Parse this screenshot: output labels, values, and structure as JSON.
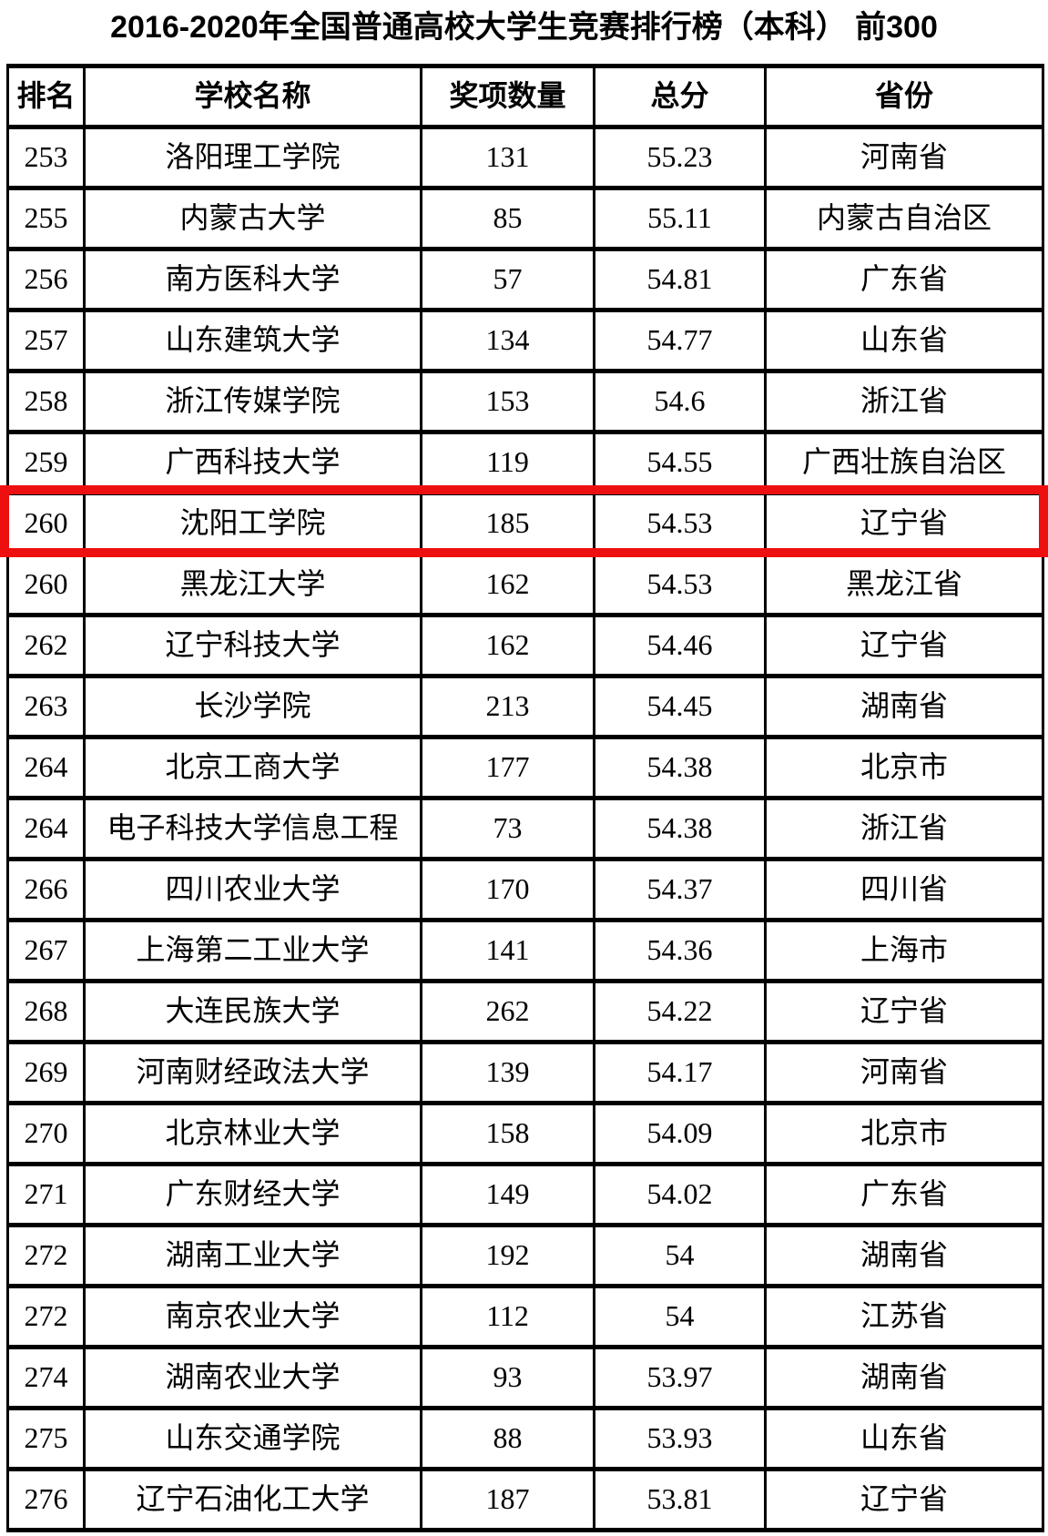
{
  "title": "2016-2020年全国普通高校大学生竞赛排行榜（本科） 前300",
  "colors": {
    "highlight_red": "#ee0f10",
    "border": "#000000",
    "text": "#000000",
    "background": "#ffffff"
  },
  "table": {
    "headers": [
      "排名",
      "学校名称",
      "奖项数量",
      "总分",
      "省份"
    ],
    "rows": [
      {
        "rank": "253",
        "school": "洛阳理工学院",
        "awards": "131",
        "score": "55.23",
        "province": "河南省",
        "highlight": false
      },
      {
        "rank": "255",
        "school": "内蒙古大学",
        "awards": "85",
        "score": "55.11",
        "province": "内蒙古自治区",
        "highlight": false
      },
      {
        "rank": "256",
        "school": "南方医科大学",
        "awards": "57",
        "score": "54.81",
        "province": "广东省",
        "highlight": false
      },
      {
        "rank": "257",
        "school": "山东建筑大学",
        "awards": "134",
        "score": "54.77",
        "province": "山东省",
        "highlight": false
      },
      {
        "rank": "258",
        "school": "浙江传媒学院",
        "awards": "153",
        "score": "54.6",
        "province": "浙江省",
        "highlight": false
      },
      {
        "rank": "259",
        "school": "广西科技大学",
        "awards": "119",
        "score": "54.55",
        "province": "广西壮族自治区",
        "highlight": false
      },
      {
        "rank": "260",
        "school": "沈阳工学院",
        "awards": "185",
        "score": "54.53",
        "province": "辽宁省",
        "highlight": true
      },
      {
        "rank": "260",
        "school": "黑龙江大学",
        "awards": "162",
        "score": "54.53",
        "province": "黑龙江省",
        "highlight": false
      },
      {
        "rank": "262",
        "school": "辽宁科技大学",
        "awards": "162",
        "score": "54.46",
        "province": "辽宁省",
        "highlight": false
      },
      {
        "rank": "263",
        "school": "长沙学院",
        "awards": "213",
        "score": "54.45",
        "province": "湖南省",
        "highlight": false
      },
      {
        "rank": "264",
        "school": "北京工商大学",
        "awards": "177",
        "score": "54.38",
        "province": "北京市",
        "highlight": false
      },
      {
        "rank": "264",
        "school": "电子科技大学信息工程",
        "awards": "73",
        "score": "54.38",
        "province": "浙江省",
        "highlight": false
      },
      {
        "rank": "266",
        "school": "四川农业大学",
        "awards": "170",
        "score": "54.37",
        "province": "四川省",
        "highlight": false
      },
      {
        "rank": "267",
        "school": "上海第二工业大学",
        "awards": "141",
        "score": "54.36",
        "province": "上海市",
        "highlight": false
      },
      {
        "rank": "268",
        "school": "大连民族大学",
        "awards": "262",
        "score": "54.22",
        "province": "辽宁省",
        "highlight": false
      },
      {
        "rank": "269",
        "school": "河南财经政法大学",
        "awards": "139",
        "score": "54.17",
        "province": "河南省",
        "highlight": false
      },
      {
        "rank": "270",
        "school": "北京林业大学",
        "awards": "158",
        "score": "54.09",
        "province": "北京市",
        "highlight": false
      },
      {
        "rank": "271",
        "school": "广东财经大学",
        "awards": "149",
        "score": "54.02",
        "province": "广东省",
        "highlight": false
      },
      {
        "rank": "272",
        "school": "湖南工业大学",
        "awards": "192",
        "score": "54",
        "province": "湖南省",
        "highlight": false
      },
      {
        "rank": "272",
        "school": "南京农业大学",
        "awards": "112",
        "score": "54",
        "province": "江苏省",
        "highlight": false
      },
      {
        "rank": "274",
        "school": "湖南农业大学",
        "awards": "93",
        "score": "53.97",
        "province": "湖南省",
        "highlight": false
      },
      {
        "rank": "275",
        "school": "山东交通学院",
        "awards": "88",
        "score": "53.93",
        "province": "山东省",
        "highlight": false
      },
      {
        "rank": "276",
        "school": "辽宁石油化工大学",
        "awards": "187",
        "score": "53.81",
        "province": "辽宁省",
        "highlight": false
      }
    ]
  }
}
